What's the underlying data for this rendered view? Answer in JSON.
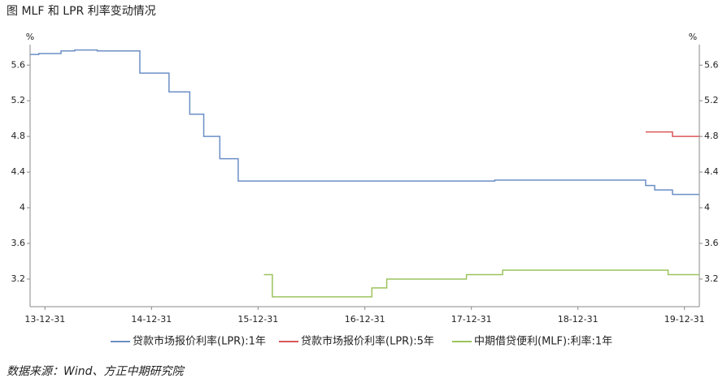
{
  "chart_data": {
    "type": "step-line",
    "title": "图   MLF 和 LPR 利率变动情况",
    "source": "数据来源：Wind、方正中期研究院",
    "ylabel": "%",
    "y2label": "%",
    "xlim": [
      "13-11-10",
      "20-02-20"
    ],
    "xticks": [
      "13-12-31",
      "14-12-31",
      "15-12-31",
      "16-12-31",
      "17-12-31",
      "18-12-31",
      "19-12-31"
    ],
    "ylim": [
      2.89,
      5.83
    ],
    "yticks": [
      3.2,
      3.6,
      4.0,
      4.4,
      4.8,
      5.2,
      5.6
    ],
    "y2lim": [
      2.89,
      5.83
    ],
    "y2ticks": [
      3.2,
      3.6,
      4.0,
      4.4,
      4.8,
      5.2,
      5.6
    ],
    "series": [
      {
        "name": "贷款市场报价利率(LPR):1年",
        "color": "#6b8fc6",
        "x": [
          "13-11-10",
          "13-12-10",
          "14-02-24",
          "14-04-12",
          "14-06-28",
          "14-11-21",
          "15-03-01",
          "15-05-11",
          "15-06-28",
          "15-08-22",
          "15-10-24",
          "18-03-21",
          "19-08-20",
          "19-09-20",
          "19-11-20",
          "20-02-20"
        ],
        "values": [
          5.72,
          5.73,
          5.76,
          5.77,
          5.76,
          5.51,
          5.3,
          5.05,
          4.8,
          4.55,
          4.3,
          4.31,
          4.25,
          4.2,
          4.15,
          4.15
        ]
      },
      {
        "name": "贷款市场报价利率(LPR):5年",
        "color": "#d9575a",
        "x": [
          "19-08-20",
          "19-11-20",
          "20-02-20"
        ],
        "values": [
          4.85,
          4.8,
          4.8
        ]
      },
      {
        "name": "中期借贷便利(MLF):利率:1年",
        "color": "#9cc45e",
        "x": [
          "16-01-20",
          "16-02-18",
          "17-01-24",
          "17-03-16",
          "17-12-14",
          "18-04-17",
          "19-11-05",
          "20-02-20"
        ],
        "values": [
          3.25,
          3.0,
          3.1,
          3.2,
          3.25,
          3.3,
          3.25,
          3.25
        ]
      }
    ]
  }
}
